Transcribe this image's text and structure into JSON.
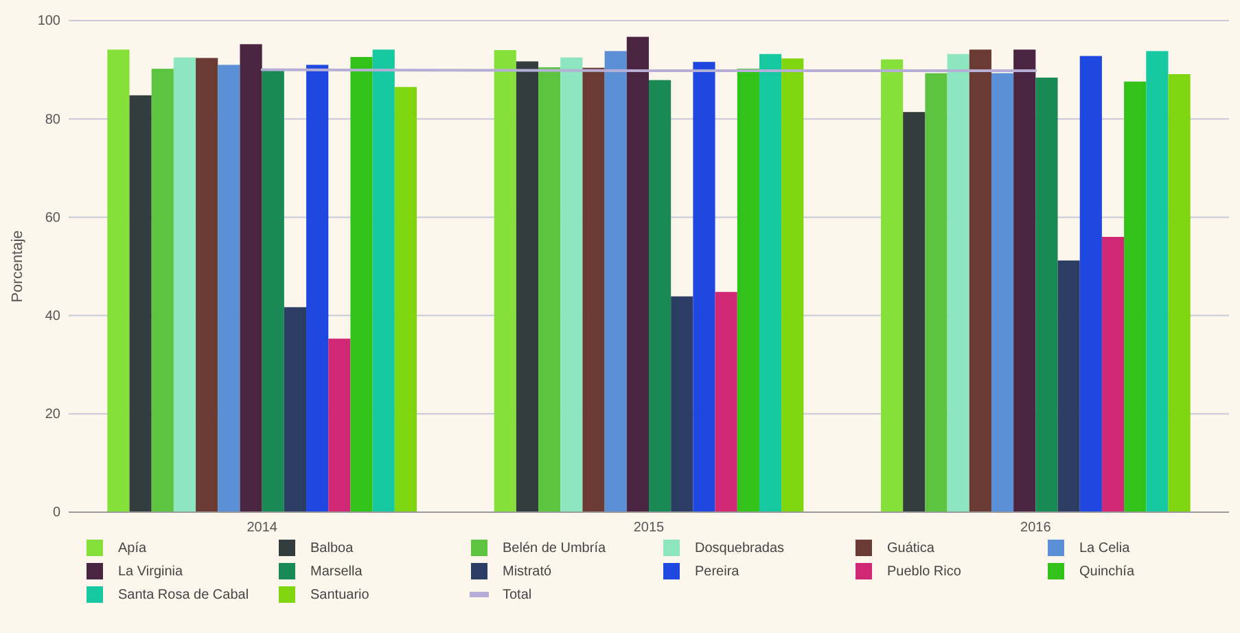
{
  "chart_data": {
    "type": "bar",
    "ylabel": "Porcentaje",
    "categories": [
      "2014",
      "2015",
      "2016"
    ],
    "ylim": [
      0,
      100
    ],
    "yticks": [
      0,
      20,
      40,
      60,
      80,
      100
    ],
    "grid": "y",
    "legend": "bottom",
    "series": [
      {
        "name": "Apía",
        "color": "#86e03a",
        "values": [
          94.1,
          94,
          92.1
        ]
      },
      {
        "name": "Balboa",
        "color": "#343d3d",
        "values": [
          84.8,
          91.7,
          81.4
        ]
      },
      {
        "name": "Belén de Umbría",
        "color": "#5cc440",
        "values": [
          90.2,
          90.5,
          89.3
        ]
      },
      {
        "name": "Dosquebradas",
        "color": "#8ee6c0",
        "values": [
          92.5,
          92.5,
          93.2
        ]
      },
      {
        "name": "Guática",
        "color": "#6b3a32",
        "values": [
          92.4,
          90.4,
          94.1
        ]
      },
      {
        "name": "La Celia",
        "color": "#5b8fd6",
        "values": [
          91,
          93.8,
          89.3
        ]
      },
      {
        "name": "La Virginia",
        "color": "#4a2440",
        "values": [
          95.2,
          96.7,
          94.1
        ]
      },
      {
        "name": "Marsella",
        "color": "#1a8a55",
        "values": [
          90.2,
          87.9,
          88.4
        ]
      },
      {
        "name": "Mistrató",
        "color": "#2c3d63",
        "values": [
          41.7,
          43.9,
          51.2
        ]
      },
      {
        "name": "Pereira",
        "color": "#1f48e0",
        "values": [
          91,
          91.6,
          92.8
        ]
      },
      {
        "name": "Pueblo Rico",
        "color": "#d12876",
        "values": [
          35.3,
          44.8,
          56
        ]
      },
      {
        "name": "Quinchía",
        "color": "#33c21a",
        "values": [
          92.6,
          90.2,
          87.6
        ]
      },
      {
        "name": "Santa Rosa de Cabal",
        "color": "#17c9a0",
        "values": [
          94.1,
          93.2,
          93.8
        ]
      },
      {
        "name": "Santuario",
        "color": "#7fd60f",
        "values": [
          86.5,
          92.3,
          89.1
        ]
      },
      {
        "name": "Total",
        "type": "line",
        "color": "#b5aed6",
        "values": [
          90,
          89.8,
          89.8
        ]
      }
    ]
  }
}
